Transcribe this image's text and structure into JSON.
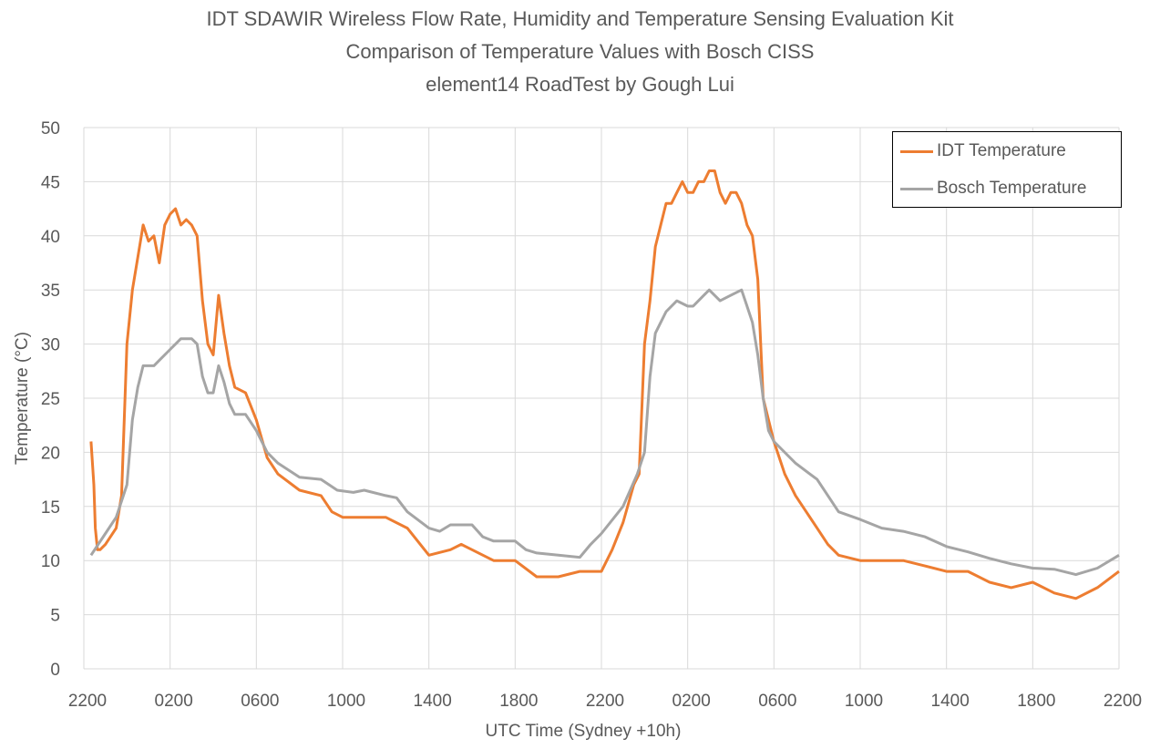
{
  "chart_data": {
    "type": "line",
    "title": "IDT SDAWIR Wireless Flow Rate, Humidity and Temperature Sensing Evaluation Kit",
    "subtitle": "Comparison of Temperature Values with Bosch CISS",
    "subtitle2": "element14 RoadTest by Gough Lui",
    "xlabel": "UTC Time (Sydney +10h)",
    "ylabel": "Temperature (°C)",
    "x_ticks": [
      "2200",
      "0200",
      "0600",
      "1000",
      "1400",
      "1800",
      "2200",
      "0200",
      "0600",
      "1000",
      "1400",
      "1800",
      "2200"
    ],
    "y_ticks": [
      "0",
      "5",
      "10",
      "15",
      "20",
      "25",
      "30",
      "35",
      "40",
      "45",
      "50"
    ],
    "ylim": [
      0,
      50
    ],
    "grid": true,
    "legend_position": "top-right",
    "series": [
      {
        "name": "IDT Temperature",
        "color": "#ED7D31",
        "points": [
          [
            "22:20",
            21
          ],
          [
            "22:28",
            17
          ],
          [
            "22:32",
            13
          ],
          [
            "22:38",
            11
          ],
          [
            "22:45",
            11
          ],
          [
            "23:00",
            11.5
          ],
          [
            "23:30",
            13
          ],
          [
            "23:45",
            16
          ],
          [
            "00:00",
            30
          ],
          [
            "00:15",
            35
          ],
          [
            "00:30",
            38
          ],
          [
            "00:45",
            41
          ],
          [
            "01:00",
            39.5
          ],
          [
            "01:15",
            40
          ],
          [
            "01:30",
            37.5
          ],
          [
            "01:45",
            41
          ],
          [
            "02:00",
            42
          ],
          [
            "02:15",
            42.5
          ],
          [
            "02:30",
            41
          ],
          [
            "02:45",
            41.5
          ],
          [
            "03:00",
            41
          ],
          [
            "03:15",
            40
          ],
          [
            "03:30",
            34
          ],
          [
            "03:45",
            30
          ],
          [
            "04:00",
            29
          ],
          [
            "04:15",
            34.5
          ],
          [
            "04:30",
            31
          ],
          [
            "04:45",
            28
          ],
          [
            "05:00",
            26
          ],
          [
            "05:30",
            25.5
          ],
          [
            "06:00",
            23
          ],
          [
            "06:30",
            19.5
          ],
          [
            "07:00",
            18
          ],
          [
            "08:00",
            16.5
          ],
          [
            "09:00",
            16
          ],
          [
            "09:30",
            14.5
          ],
          [
            "10:00",
            14
          ],
          [
            "11:00",
            14
          ],
          [
            "12:00",
            14
          ],
          [
            "13:00",
            13
          ],
          [
            "14:00",
            10.5
          ],
          [
            "15:00",
            11
          ],
          [
            "15:30",
            11.5
          ],
          [
            "16:00",
            11
          ],
          [
            "17:00",
            10
          ],
          [
            "18:00",
            10
          ],
          [
            "19:00",
            8.5
          ],
          [
            "20:00",
            8.5
          ],
          [
            "21:00",
            9
          ],
          [
            "22:00",
            9
          ],
          [
            "22:30",
            11
          ],
          [
            "23:00",
            13.5
          ],
          [
            "23:30",
            17
          ],
          [
            "23:45",
            18
          ],
          [
            "00:00",
            30
          ],
          [
            "00:15",
            34
          ],
          [
            "00:30",
            39
          ],
          [
            "00:45",
            41
          ],
          [
            "01:00",
            43
          ],
          [
            "01:15",
            43
          ],
          [
            "01:30",
            44
          ],
          [
            "01:45",
            45
          ],
          [
            "02:00",
            44
          ],
          [
            "02:15",
            44
          ],
          [
            "02:30",
            45
          ],
          [
            "02:45",
            45
          ],
          [
            "03:00",
            46
          ],
          [
            "03:15",
            46
          ],
          [
            "03:30",
            44
          ],
          [
            "03:45",
            43
          ],
          [
            "04:00",
            44
          ],
          [
            "04:15",
            44
          ],
          [
            "04:30",
            43
          ],
          [
            "04:45",
            41
          ],
          [
            "05:00",
            40
          ],
          [
            "05:15",
            36
          ],
          [
            "05:30",
            25
          ],
          [
            "05:45",
            23
          ],
          [
            "06:00",
            21
          ],
          [
            "06:30",
            18
          ],
          [
            "07:00",
            16
          ],
          [
            "07:30",
            14.5
          ],
          [
            "08:00",
            13
          ],
          [
            "08:30",
            11.5
          ],
          [
            "09:00",
            10.5
          ],
          [
            "10:00",
            10
          ],
          [
            "11:00",
            10
          ],
          [
            "12:00",
            10
          ],
          [
            "13:00",
            9.5
          ],
          [
            "14:00",
            9
          ],
          [
            "15:00",
            9
          ],
          [
            "16:00",
            8
          ],
          [
            "17:00",
            7.5
          ],
          [
            "18:00",
            8
          ],
          [
            "19:00",
            7
          ],
          [
            "20:00",
            6.5
          ],
          [
            "21:00",
            7.5
          ],
          [
            "22:00",
            9
          ]
        ]
      },
      {
        "name": "Bosch Temperature",
        "color": "#A5A5A5",
        "points": [
          [
            "22:20",
            10.5
          ],
          [
            "23:00",
            12.5
          ],
          [
            "23:30",
            14
          ],
          [
            "23:50",
            16
          ],
          [
            "00:00",
            17
          ],
          [
            "00:15",
            23
          ],
          [
            "00:30",
            26
          ],
          [
            "00:45",
            28
          ],
          [
            "01:15",
            28
          ],
          [
            "01:30",
            28.5
          ],
          [
            "02:00",
            29.5
          ],
          [
            "02:30",
            30.5
          ],
          [
            "03:00",
            30.5
          ],
          [
            "03:15",
            30
          ],
          [
            "03:30",
            27
          ],
          [
            "03:45",
            25.5
          ],
          [
            "04:00",
            25.5
          ],
          [
            "04:15",
            28
          ],
          [
            "04:30",
            26.5
          ],
          [
            "04:45",
            24.5
          ],
          [
            "05:00",
            23.5
          ],
          [
            "05:30",
            23.5
          ],
          [
            "06:00",
            22
          ],
          [
            "06:30",
            20
          ],
          [
            "07:00",
            19
          ],
          [
            "08:00",
            17.7
          ],
          [
            "09:00",
            17.5
          ],
          [
            "09:45",
            16.5
          ],
          [
            "10:30",
            16.3
          ],
          [
            "11:00",
            16.5
          ],
          [
            "12:00",
            16
          ],
          [
            "12:30",
            15.8
          ],
          [
            "13:00",
            14.5
          ],
          [
            "14:00",
            13
          ],
          [
            "14:30",
            12.7
          ],
          [
            "15:00",
            13.3
          ],
          [
            "16:00",
            13.3
          ],
          [
            "16:30",
            12.2
          ],
          [
            "17:00",
            11.8
          ],
          [
            "18:00",
            11.8
          ],
          [
            "18:30",
            11
          ],
          [
            "19:00",
            10.7
          ],
          [
            "20:00",
            10.5
          ],
          [
            "21:00",
            10.3
          ],
          [
            "21:30",
            11.5
          ],
          [
            "22:00",
            12.5
          ],
          [
            "23:00",
            15
          ],
          [
            "23:40",
            18
          ],
          [
            "00:00",
            20
          ],
          [
            "00:15",
            27
          ],
          [
            "00:30",
            31
          ],
          [
            "00:45",
            32
          ],
          [
            "01:00",
            33
          ],
          [
            "01:30",
            34
          ],
          [
            "02:00",
            33.5
          ],
          [
            "02:15",
            33.5
          ],
          [
            "02:45",
            34.5
          ],
          [
            "03:00",
            35
          ],
          [
            "03:30",
            34
          ],
          [
            "04:00",
            34.5
          ],
          [
            "04:30",
            35
          ],
          [
            "04:45",
            33.5
          ],
          [
            "05:00",
            32
          ],
          [
            "05:15",
            29
          ],
          [
            "05:30",
            25
          ],
          [
            "05:45",
            22
          ],
          [
            "06:00",
            21
          ],
          [
            "07:00",
            19
          ],
          [
            "08:00",
            17.5
          ],
          [
            "09:00",
            14.5
          ],
          [
            "10:00",
            13.8
          ],
          [
            "11:00",
            13
          ],
          [
            "12:00",
            12.7
          ],
          [
            "13:00",
            12.2
          ],
          [
            "14:00",
            11.3
          ],
          [
            "15:00",
            10.8
          ],
          [
            "16:00",
            10.2
          ],
          [
            "17:00",
            9.7
          ],
          [
            "18:00",
            9.3
          ],
          [
            "19:00",
            9.2
          ],
          [
            "20:00",
            8.7
          ],
          [
            "21:00",
            9.3
          ],
          [
            "22:00",
            10.5
          ]
        ]
      }
    ]
  }
}
